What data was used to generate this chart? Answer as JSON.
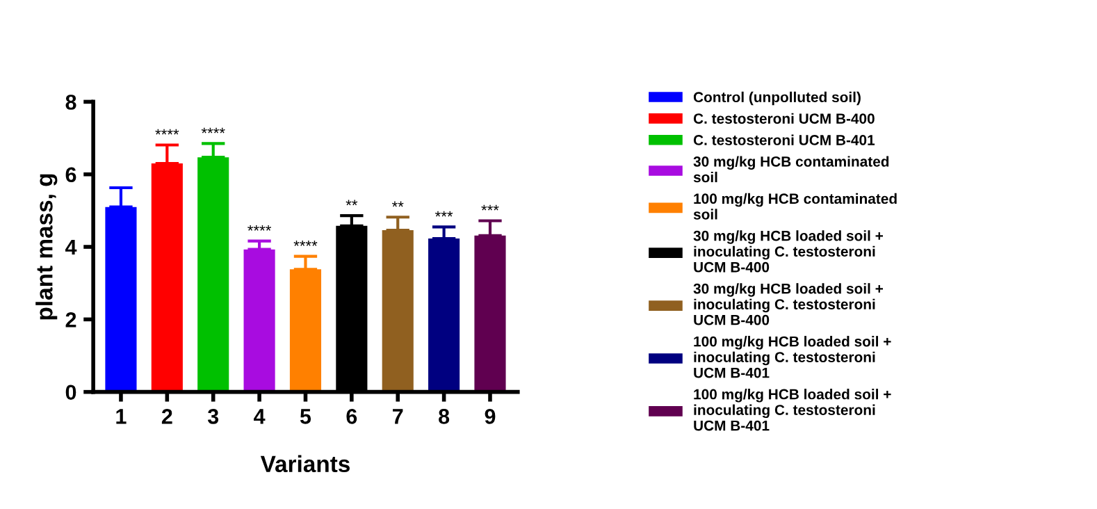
{
  "chart_data": {
    "type": "bar",
    "xlabel": "Variants",
    "ylabel": "plant mass, g",
    "categories": [
      "1",
      "2",
      "3",
      "4",
      "5",
      "6",
      "7",
      "8",
      "9"
    ],
    "series": [
      {
        "name": "Control (unpolluted soil)",
        "color": "#0000ff",
        "values": [
          5.1,
          null,
          null,
          null,
          null,
          null,
          null,
          null,
          null
        ],
        "errors": [
          [
            5.1,
            5.63
          ],
          null,
          null,
          null,
          null,
          null,
          null,
          null,
          null
        ]
      },
      {
        "name": "C. testosteroni UCM B-400",
        "color": "#ff0000",
        "values": [
          null,
          6.3,
          null,
          null,
          null,
          null,
          null,
          null,
          null
        ],
        "errors": [
          null,
          [
            6.3,
            6.81
          ],
          null,
          null,
          null,
          null,
          null,
          null,
          null
        ]
      },
      {
        "name": "C. testosteroni UCM B-401",
        "color": "#00c000",
        "values": [
          null,
          null,
          6.47,
          null,
          null,
          null,
          null,
          null,
          null
        ],
        "errors": [
          null,
          null,
          [
            6.47,
            6.85
          ],
          null,
          null,
          null,
          null,
          null,
          null
        ]
      },
      {
        "name": "30 mg/kg HCB contaminated\nsoil",
        "color": "#a80ce0",
        "values": [
          null,
          null,
          null,
          3.93,
          null,
          null,
          null,
          null,
          null
        ],
        "errors": [
          null,
          null,
          null,
          [
            3.93,
            4.16
          ],
          null,
          null,
          null,
          null,
          null
        ]
      },
      {
        "name": "100 mg/kg HCB contaminated\nsoil",
        "color": "#ff8000",
        "values": [
          null,
          null,
          null,
          null,
          3.38,
          null,
          null,
          null,
          null
        ],
        "errors": [
          null,
          null,
          null,
          null,
          [
            3.38,
            3.74
          ],
          null,
          null,
          null,
          null
        ]
      },
      {
        "name": "30 mg/kg HCB loaded soil +\ninoculating C. testosteroni\nUCM B-400",
        "color": "#000000",
        "values": [
          null,
          null,
          null,
          null,
          null,
          4.58,
          null,
          null,
          null
        ],
        "errors": [
          null,
          null,
          null,
          null,
          null,
          [
            4.58,
            4.86
          ],
          null,
          null,
          null
        ]
      },
      {
        "name": "30 mg/kg HCB loaded soil +\ninoculating C. testosteroni\nUCM B-400",
        "color": "#906020",
        "values": [
          null,
          null,
          null,
          null,
          null,
          null,
          4.46,
          null,
          null
        ],
        "errors": [
          null,
          null,
          null,
          null,
          null,
          null,
          [
            4.46,
            4.82
          ],
          null,
          null
        ]
      },
      {
        "name": "100 mg/kg HCB loaded soil +\ninoculating C. testosteroni\nUCM B-401",
        "color": "#000080",
        "values": [
          null,
          null,
          null,
          null,
          null,
          null,
          null,
          4.23,
          null
        ],
        "errors": [
          null,
          null,
          null,
          null,
          null,
          null,
          null,
          [
            4.23,
            4.55
          ],
          null
        ]
      },
      {
        "name": "100 mg/kg HCB loaded soil +\ninoculating C. testosteroni\nUCM B-401",
        "color": "#600050",
        "values": [
          null,
          null,
          null,
          null,
          null,
          null,
          null,
          null,
          4.31
        ],
        "errors": [
          null,
          null,
          null,
          null,
          null,
          null,
          null,
          null,
          [
            4.31,
            4.72
          ]
        ]
      }
    ],
    "annotations": [
      {
        "text": "****",
        "x": "2",
        "y": 6.81
      },
      {
        "text": "****",
        "x": "3",
        "y": 6.85
      },
      {
        "text": "****",
        "x": "4",
        "y": 4.16
      },
      {
        "text": "****",
        "x": "5",
        "y": 3.74
      },
      {
        "text": "**",
        "x": "6",
        "y": 4.86
      },
      {
        "text": "**",
        "x": "7",
        "y": 4.82
      },
      {
        "text": "***",
        "x": "8",
        "y": 4.55
      },
      {
        "text": "***",
        "x": "9",
        "y": 4.72
      }
    ],
    "ylim": [
      0,
      8
    ],
    "yticks": [
      0,
      2,
      4,
      6,
      8
    ],
    "grid": false,
    "legend": "right"
  }
}
